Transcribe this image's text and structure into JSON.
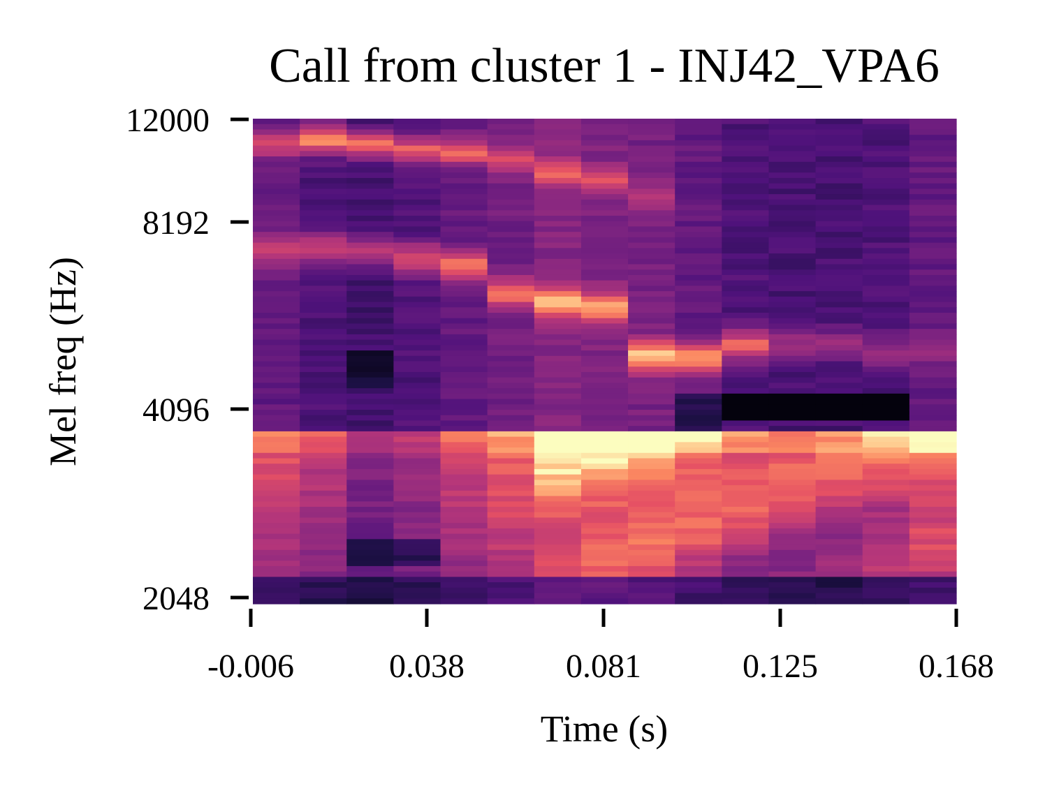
{
  "chart_data": {
    "type": "heatmap",
    "title": "Call from cluster 1 - INJ42_VPA6",
    "xlabel": "Time (s)",
    "ylabel": "Mel freq (Hz)",
    "x_ticks": [
      "-0.006",
      "0.038",
      "0.081",
      "0.125",
      "0.168"
    ],
    "y_ticks": [
      "12000",
      "8192",
      "4096",
      "2048"
    ],
    "xlim": [
      -0.006,
      0.168
    ],
    "y_scale": "mel",
    "ylim": [
      2048,
      12000
    ],
    "colormap": "magma",
    "n_time_frames": 15,
    "grid": false,
    "legend": "none"
  }
}
